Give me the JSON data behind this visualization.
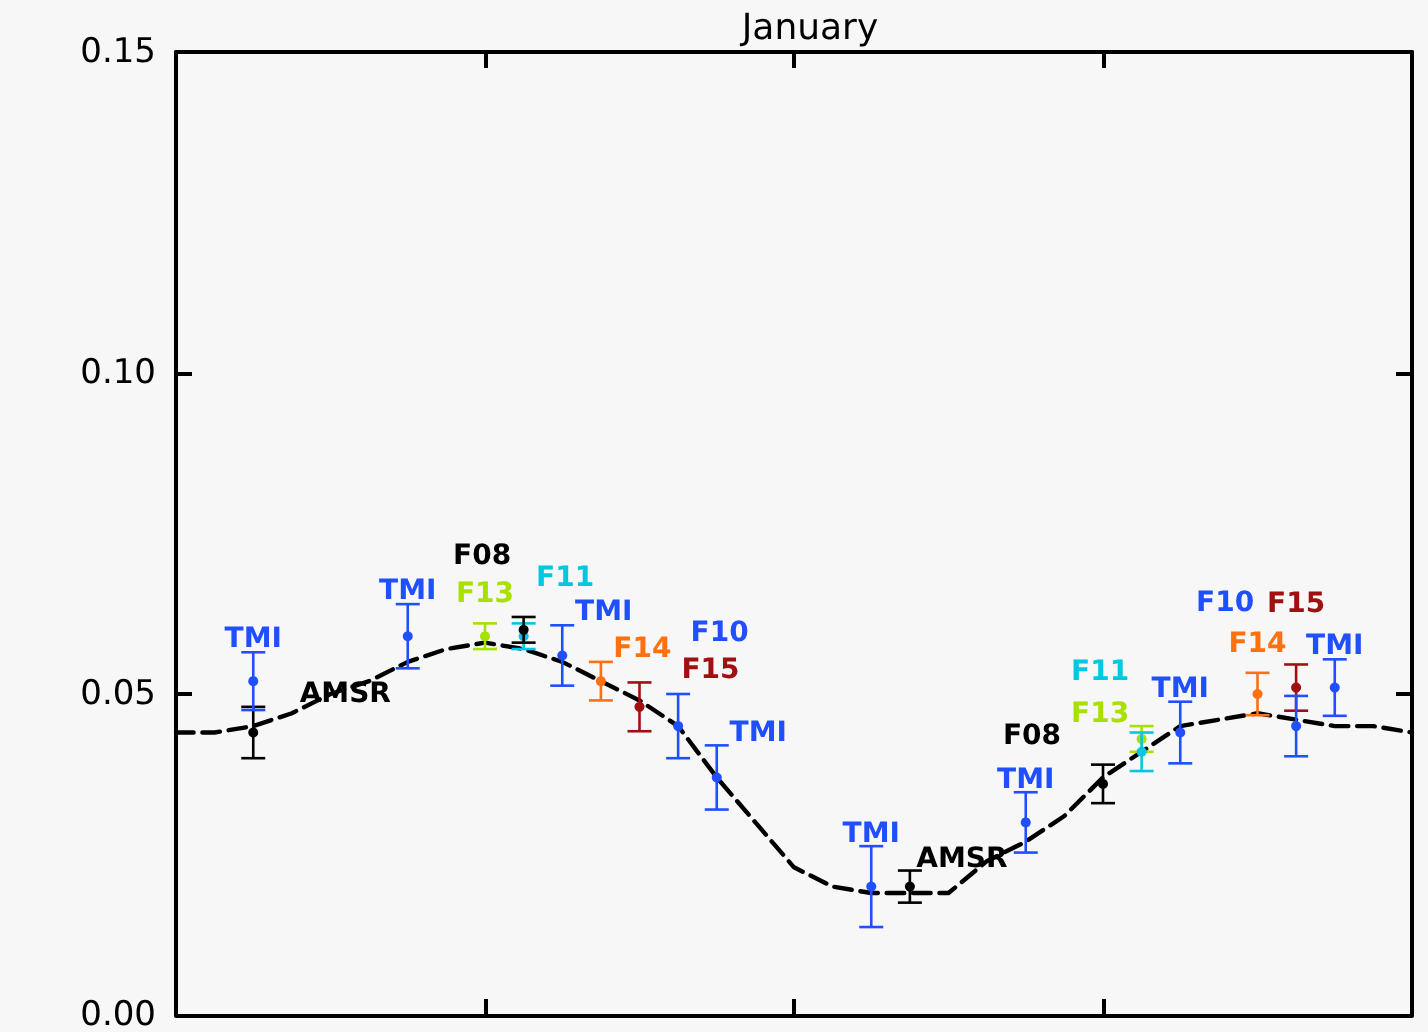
{
  "chart_data": {
    "type": "scatter",
    "title": "January",
    "marker": "circle",
    "grid": false,
    "tick_labels": "y",
    "categories": [
      null,
      null,
      null,
      null,
      null,
      null,
      null,
      null,
      null,
      null,
      null,
      null,
      null,
      null,
      null,
      null,
      null,
      null,
      null,
      null,
      null,
      null,
      null,
      null,
      null,
      null,
      null,
      null,
      null,
      null,
      null,
      null,
      null
    ],
    "ylim": [
      0,
      0.15
    ],
    "yticks": [
      {
        "value": 0,
        "label": "0.00"
      },
      {
        "value": 0.05,
        "label": "0.05"
      },
      {
        "value": 0.1,
        "label": "0.10"
      },
      {
        "value": 0.15,
        "label": "0.15"
      }
    ],
    "series": [
      {
        "type": "line",
        "marker": "none",
        "line_style": "dashed",
        "color": "#000000",
        "values": [
          0.044,
          0.044,
          0.045,
          0.047,
          0.05,
          0.052,
          0.055,
          0.057,
          0.058,
          0.057,
          0.055,
          0.052,
          0.049,
          0.045,
          0.037,
          0.03,
          0.023,
          0.02,
          0.019,
          0.019,
          0.019,
          0.024,
          0.027,
          0.031,
          0.037,
          0.041,
          0.045,
          0.046,
          0.047,
          0.046,
          0.045,
          0.045,
          0.044
        ]
      },
      {
        "name": "AMSR",
        "color": "#000000",
        "values": [
          null,
          null,
          0.044,
          null,
          null,
          null,
          null,
          null,
          null,
          null,
          null,
          null,
          null,
          null,
          null,
          null,
          null,
          null,
          null,
          0.02,
          null,
          null,
          null,
          null,
          null,
          null,
          null,
          null,
          null,
          null,
          null,
          null,
          null
        ],
        "errors": [
          null,
          null,
          0.004,
          null,
          null,
          null,
          null,
          null,
          null,
          null,
          null,
          null,
          null,
          null,
          null,
          null,
          null,
          null,
          null,
          0.0025,
          null,
          null,
          null,
          null,
          null,
          null,
          null,
          null,
          null,
          null,
          null,
          null,
          null
        ]
      },
      {
        "name": "TMI",
        "color": "#1f4fff",
        "values": [
          null,
          null,
          0.052,
          null,
          null,
          null,
          0.059,
          null,
          null,
          null,
          0.056,
          null,
          null,
          null,
          0.037,
          null,
          null,
          null,
          0.02,
          null,
          null,
          null,
          0.03,
          null,
          null,
          null,
          0.044,
          null,
          null,
          null,
          0.051,
          null,
          null
        ],
        "errors": [
          null,
          null,
          0.0045,
          null,
          null,
          null,
          0.005,
          null,
          null,
          null,
          0.0047,
          null,
          null,
          null,
          0.005,
          null,
          null,
          null,
          0.0063,
          null,
          null,
          null,
          0.0047,
          null,
          null,
          null,
          0.0048,
          null,
          null,
          null,
          0.0044,
          null,
          null
        ]
      },
      {
        "name": "F13",
        "color": "#a8e000",
        "values": [
          null,
          null,
          null,
          null,
          null,
          null,
          null,
          null,
          0.059,
          null,
          null,
          null,
          null,
          null,
          null,
          null,
          null,
          null,
          null,
          null,
          null,
          null,
          null,
          null,
          null,
          0.043,
          null,
          null,
          null,
          null,
          null,
          null,
          null
        ],
        "errors": [
          null,
          null,
          null,
          null,
          null,
          null,
          null,
          null,
          0.002,
          null,
          null,
          null,
          null,
          null,
          null,
          null,
          null,
          null,
          null,
          null,
          null,
          null,
          null,
          null,
          null,
          0.002,
          null,
          null,
          null,
          null,
          null,
          null,
          null
        ]
      },
      {
        "name": "F11",
        "color": "#00c8e0",
        "values": [
          null,
          null,
          null,
          null,
          null,
          null,
          null,
          null,
          null,
          0.059,
          null,
          null,
          null,
          null,
          null,
          null,
          null,
          null,
          null,
          null,
          null,
          null,
          null,
          null,
          null,
          0.041,
          null,
          null,
          null,
          null,
          null,
          null,
          null
        ],
        "errors": [
          null,
          null,
          null,
          null,
          null,
          null,
          null,
          null,
          null,
          0.002,
          null,
          null,
          null,
          null,
          null,
          null,
          null,
          null,
          null,
          null,
          null,
          null,
          null,
          null,
          null,
          0.003,
          null,
          null,
          null,
          null,
          null,
          null,
          null
        ]
      },
      {
        "name": "F08",
        "color": "#000000",
        "values": [
          null,
          null,
          null,
          null,
          null,
          null,
          null,
          null,
          null,
          0.06,
          null,
          null,
          null,
          null,
          null,
          null,
          null,
          null,
          null,
          null,
          null,
          null,
          null,
          null,
          0.036,
          null,
          null,
          null,
          null,
          null,
          null,
          null,
          null
        ],
        "errors": [
          null,
          null,
          null,
          null,
          null,
          null,
          null,
          null,
          null,
          0.002,
          null,
          null,
          null,
          null,
          null,
          null,
          null,
          null,
          null,
          null,
          null,
          null,
          null,
          null,
          0.003,
          null,
          null,
          null,
          null,
          null,
          null,
          null,
          null
        ]
      },
      {
        "name": "F14",
        "color": "#ff7010",
        "values": [
          null,
          null,
          null,
          null,
          null,
          null,
          null,
          null,
          null,
          null,
          null,
          0.052,
          null,
          null,
          null,
          null,
          null,
          null,
          null,
          null,
          null,
          null,
          null,
          null,
          null,
          null,
          null,
          null,
          0.05,
          null,
          null,
          null,
          null
        ],
        "errors": [
          null,
          null,
          null,
          null,
          null,
          null,
          null,
          null,
          null,
          null,
          null,
          0.003,
          null,
          null,
          null,
          null,
          null,
          null,
          null,
          null,
          null,
          null,
          null,
          null,
          null,
          null,
          null,
          null,
          0.0033,
          null,
          null,
          null,
          null
        ]
      },
      {
        "name": "F15",
        "color": "#a01010",
        "values": [
          null,
          null,
          null,
          null,
          null,
          null,
          null,
          null,
          null,
          null,
          null,
          null,
          0.048,
          null,
          null,
          null,
          null,
          null,
          null,
          null,
          null,
          null,
          null,
          null,
          null,
          null,
          null,
          null,
          null,
          0.051,
          null,
          null,
          null
        ],
        "errors": [
          null,
          null,
          null,
          null,
          null,
          null,
          null,
          null,
          null,
          null,
          null,
          null,
          0.0038,
          null,
          null,
          null,
          null,
          null,
          null,
          null,
          null,
          null,
          null,
          null,
          null,
          null,
          null,
          null,
          null,
          0.0036,
          null,
          null,
          null
        ]
      },
      {
        "name": "F10",
        "color": "#1f4fff",
        "values": [
          null,
          null,
          null,
          null,
          null,
          null,
          null,
          null,
          null,
          null,
          null,
          null,
          null,
          0.045,
          null,
          null,
          null,
          null,
          null,
          null,
          null,
          null,
          null,
          null,
          null,
          null,
          null,
          null,
          null,
          0.045,
          null,
          null,
          null
        ],
        "errors": [
          null,
          null,
          null,
          null,
          null,
          null,
          null,
          null,
          null,
          null,
          null,
          null,
          null,
          0.005,
          null,
          null,
          null,
          null,
          null,
          null,
          null,
          null,
          null,
          null,
          null,
          null,
          null,
          null,
          null,
          0.0047,
          null,
          null,
          null
        ]
      }
    ]
  }
}
